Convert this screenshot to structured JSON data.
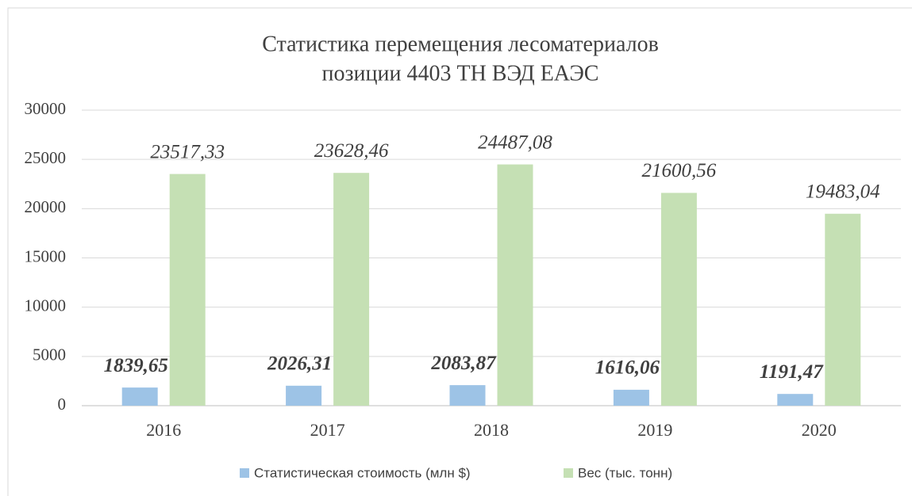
{
  "chart_data": {
    "type": "bar",
    "title": [
      "Статистика перемещения лесоматериалов",
      "позиции 4403 ТН ВЭД ЕАЭС"
    ],
    "categories": [
      "2016",
      "2017",
      "2018",
      "2019",
      "2020"
    ],
    "series": [
      {
        "name": "Статистическая стоимость (млн $)",
        "color": "#9dc3e6",
        "values": [
          1839.65,
          2026.31,
          2083.87,
          1616.06,
          1191.47
        ],
        "value_labels": [
          "1839,65",
          "2026,31",
          "2083,87",
          "1616,06",
          "1191,47"
        ]
      },
      {
        "name": "Вес (тыс. тонн)",
        "color": "#c5e0b4",
        "values": [
          23517.33,
          23628.46,
          24487.08,
          21600.56,
          19483.04
        ],
        "value_labels": [
          "23517,33",
          "23628,46",
          "24487,08",
          "21600,56",
          "19483,04"
        ]
      }
    ],
    "ylim": [
      0,
      30000
    ],
    "yticks": [
      0,
      5000,
      10000,
      15000,
      20000,
      25000,
      30000
    ],
    "grid": true,
    "legend": "bottom"
  }
}
